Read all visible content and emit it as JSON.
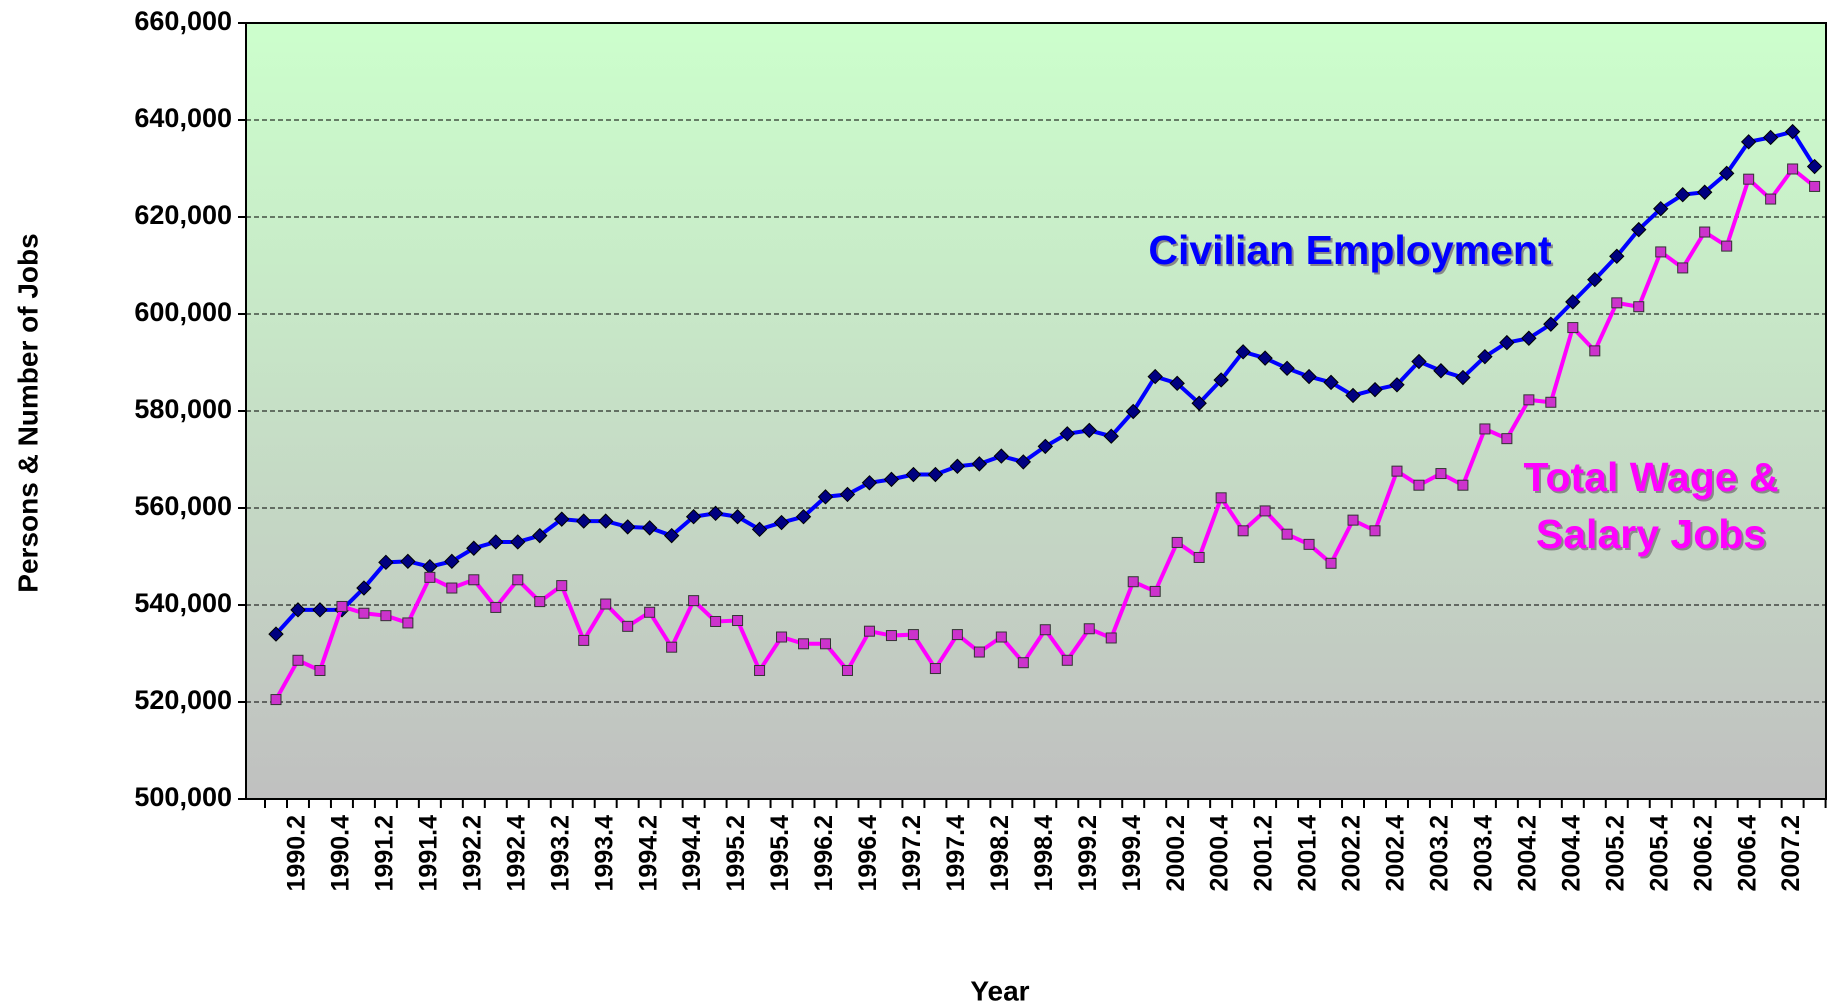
{
  "chart_data": {
    "type": "line",
    "xlabel": "Year",
    "ylabel": "Persons & Number of Jobs",
    "categories": [
      null,
      "1990.2",
      null,
      "1990.4",
      null,
      "1991.2",
      null,
      "1991.4",
      null,
      "1992.2",
      null,
      "1992.4",
      null,
      "1993.2",
      null,
      "1993.4",
      null,
      "1994.2",
      null,
      "1994.4",
      null,
      "1995.2",
      null,
      "1995.4",
      null,
      "1996.2",
      null,
      "1996.4",
      null,
      "1997.2",
      null,
      "1997.4",
      null,
      "1998.2",
      null,
      "1998.4",
      null,
      "1999.2",
      null,
      "1999.4",
      null,
      "2000.2",
      null,
      "2000.4",
      null,
      "2001.2",
      null,
      "2001.4",
      null,
      "2002.2",
      null,
      "2002.4",
      null,
      "2003.2",
      null,
      "2003.4",
      null,
      "2004.2",
      null,
      "2004.4",
      null,
      "2005.2",
      null,
      "2005.4",
      null,
      "2006.2",
      null,
      "2006.4",
      null,
      "2007.2",
      null
    ],
    "series": [
      {
        "name": "Civilian Employment",
        "color": "#0000ff",
        "marker": "diamond",
        "marker_color": "#000080",
        "values": [
          534000,
          539000,
          539000,
          539000,
          543500,
          548800,
          549000,
          547900,
          549000,
          551700,
          553000,
          553000,
          554300,
          557700,
          557300,
          557300,
          556100,
          555900,
          554300,
          558200,
          558900,
          558200,
          555600,
          557000,
          558200,
          562300,
          562800,
          565200,
          565900,
          566900,
          566900,
          568600,
          569100,
          570700,
          569500,
          572700,
          575300,
          576000,
          574800,
          579900,
          587100,
          585700,
          581600,
          586400,
          592200,
          590900,
          588800,
          587100,
          585900,
          583200,
          584400,
          585400,
          590200,
          588300,
          586900,
          591200,
          594100,
          595000,
          597900,
          602500,
          607100,
          611900,
          617400,
          621700,
          624600,
          625100,
          629000,
          635500,
          636400,
          637600,
          630400
        ]
      },
      {
        "name": "Total Wage & Salary Jobs",
        "color": "#ff00ff",
        "marker": "square",
        "marker_color": "#cc33cc",
        "values": [
          520500,
          528600,
          526500,
          539700,
          538300,
          537800,
          536300,
          545700,
          543500,
          545200,
          539500,
          545200,
          540700,
          544000,
          532700,
          540200,
          535600,
          538500,
          531300,
          540900,
          536600,
          536800,
          526500,
          533400,
          532000,
          532000,
          526500,
          534600,
          533700,
          533900,
          526900,
          533900,
          530300,
          533400,
          528100,
          534900,
          528600,
          535100,
          533200,
          544800,
          542800,
          552900,
          549800,
          562100,
          555300,
          559400,
          554600,
          552500,
          548600,
          557500,
          555300,
          567600,
          564700,
          567100,
          564700,
          576300,
          574300,
          582300,
          581800,
          597200,
          592400,
          602300,
          601500,
          612800,
          609500,
          616900,
          614000,
          627800,
          623700,
          629900,
          626300
        ]
      }
    ],
    "annotations": [
      {
        "series": 0,
        "lines": [
          "Civilian Employment"
        ]
      },
      {
        "series": 1,
        "lines": [
          "Total Wage &",
          "Salary Jobs"
        ]
      }
    ],
    "ylim": [
      500000,
      660000
    ],
    "yticks": [
      {
        "value": 500000,
        "label": "500,000"
      },
      {
        "value": 520000,
        "label": "520,000"
      },
      {
        "value": 540000,
        "label": "540,000"
      },
      {
        "value": 560000,
        "label": "560,000"
      },
      {
        "value": 580000,
        "label": "580,000"
      },
      {
        "value": 600000,
        "label": "600,000"
      },
      {
        "value": 620000,
        "label": "620,000"
      },
      {
        "value": 640000,
        "label": "640,000"
      },
      {
        "value": 660000,
        "label": "660,000"
      }
    ],
    "grid": true,
    "background": [
      "#ccffcc",
      "#c0c0c0"
    ]
  }
}
